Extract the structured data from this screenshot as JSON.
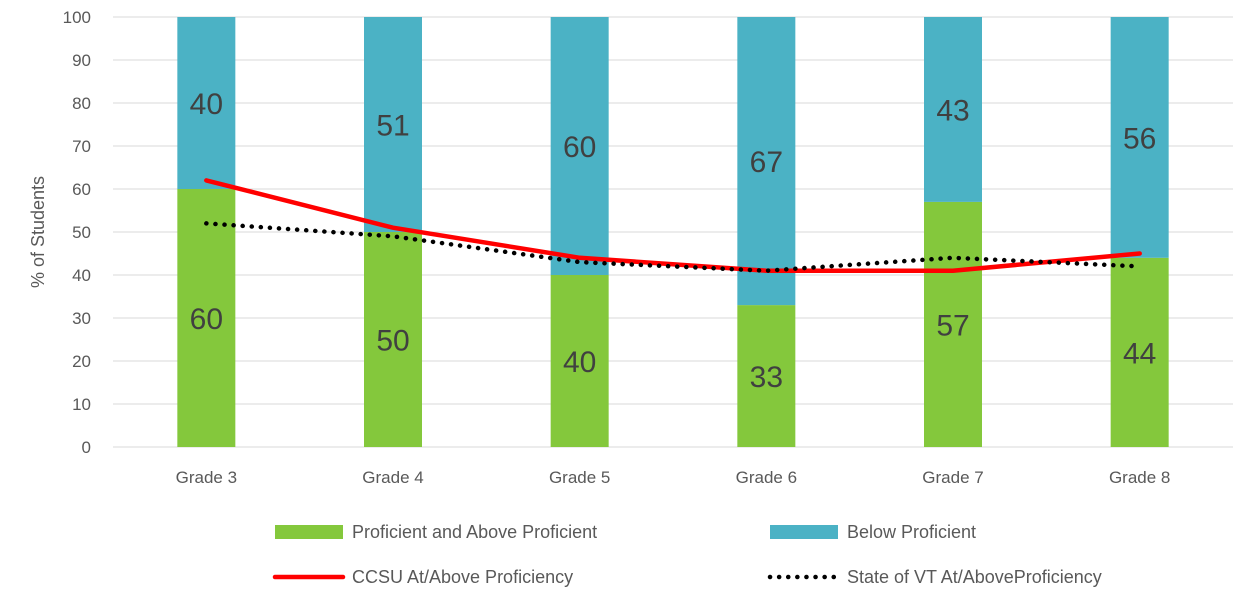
{
  "chart_data": {
    "type": "bar",
    "stacked": true,
    "categories": [
      "Grade 3",
      "Grade 4",
      "Grade 5",
      "Grade 6",
      "Grade 7",
      "Grade 8"
    ],
    "series": [
      {
        "name": "Proficient and Above Proficient",
        "kind": "bar",
        "color": "#84c83c",
        "values": [
          60,
          50,
          40,
          33,
          57,
          44
        ]
      },
      {
        "name": "Below Proficient",
        "kind": "bar",
        "color": "#4bb2c5",
        "values": [
          40,
          51,
          60,
          67,
          43,
          56
        ]
      },
      {
        "name": "CCSU At/Above Proficiency",
        "kind": "line",
        "style": "solid",
        "color": "#ff0000",
        "values": [
          62,
          51,
          44,
          41,
          41,
          45
        ]
      },
      {
        "name": "State of VT At/AboveProficiency",
        "kind": "line",
        "style": "dotted",
        "color": "#000000",
        "values": [
          52,
          49,
          43,
          41,
          44,
          42
        ]
      }
    ],
    "ylabel": "% of Students",
    "ylim": [
      0,
      100
    ],
    "yticks": [
      0,
      10,
      20,
      30,
      40,
      50,
      60,
      70,
      80,
      90,
      100
    ],
    "grid": true,
    "legend": "bottom"
  }
}
